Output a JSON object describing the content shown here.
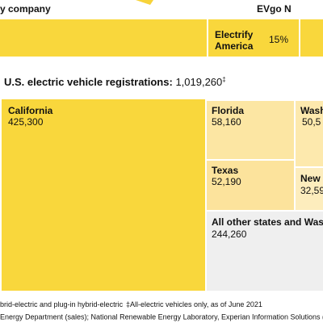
{
  "header": {
    "left": "y company",
    "right": "EVgo N"
  },
  "top_strip": {
    "label_line1": "Electrify",
    "label_line2": "America",
    "share": "15%"
  },
  "treemap": {
    "title": "U.S. electric vehicle registrations:",
    "total": "1,019,260",
    "total_mark": "‡",
    "cells": [
      {
        "label": "California",
        "value": "425,300"
      },
      {
        "label": "Florida",
        "value": "58,160"
      },
      {
        "label": "Wash",
        "value": "50,5"
      },
      {
        "label": "Texas",
        "value": "52,190"
      },
      {
        "label": "New",
        "value": "32,59"
      },
      {
        "label": "All other states and Wash",
        "value": "244,260"
      }
    ]
  },
  "footnotes": [
    "brid-electric and plug-in hybrid-electric",
    "‡All-electric vehicles only, as of June 2021",
    "Energy Department (sales); National Renewable Energy Laboratory, Experian Information Solutions (r"
  ]
}
